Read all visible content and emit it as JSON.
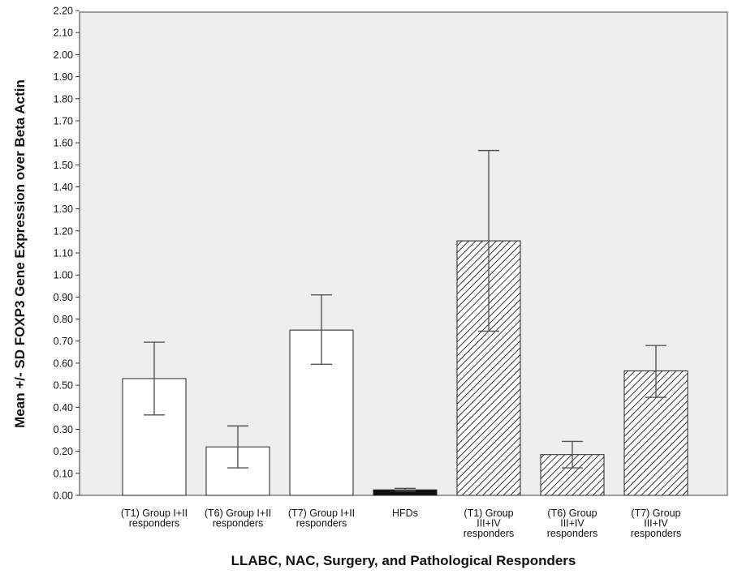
{
  "chart_data": {
    "type": "bar",
    "title": "",
    "xlabel": "LLABC, NAC, Surgery, and Pathological Responders",
    "ylabel": "Mean +/- SD FOXP3 Gene Expression over Beta Actin",
    "ylim": [
      0,
      2.2
    ],
    "yticks": [
      "0.00",
      "0.10",
      "0.20",
      "0.30",
      "0.40",
      "0.50",
      "0.60",
      "0.70",
      "0.80",
      "0.90",
      "1.00",
      "1.10",
      "1.20",
      "1.30",
      "1.40",
      "1.50",
      "1.60",
      "1.70",
      "1.80",
      "1.90",
      "2.00",
      "2.10",
      "2.20"
    ],
    "categories": [
      [
        "(T1) Group I+II",
        "responders"
      ],
      [
        "(T6) Group I+II",
        "responders"
      ],
      [
        "(T7) Group I+II",
        "responders"
      ],
      [
        "HFDs"
      ],
      [
        "(T1) Group",
        "III+IV",
        "responders"
      ],
      [
        "(T6) Group",
        "III+IV",
        "responders"
      ],
      [
        "(T7) Group",
        "III+IV",
        "responders"
      ]
    ],
    "values": [
      0.53,
      0.22,
      0.75,
      0.025,
      1.155,
      0.185,
      0.565
    ],
    "error_low": [
      0.365,
      0.125,
      0.595,
      0.02,
      0.745,
      0.125,
      0.445
    ],
    "error_high": [
      0.695,
      0.315,
      0.91,
      0.032,
      1.565,
      0.245,
      0.68
    ],
    "fill_styles": [
      "white",
      "white",
      "white",
      "black",
      "hatched",
      "hatched",
      "hatched"
    ],
    "grid": false,
    "colors": {
      "plot_background": "#eeeeee",
      "bar_outline": "#222222",
      "hatch": "#333333",
      "error_bar": "#555555"
    }
  }
}
